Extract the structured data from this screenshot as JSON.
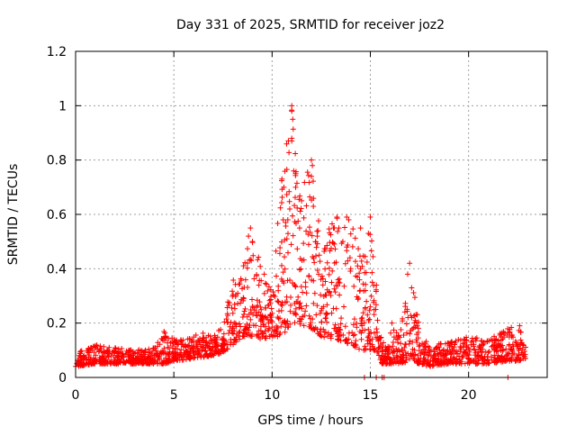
{
  "chart_data": {
    "type": "scatter",
    "title": "Day 331 of 2025, SRMTID for receiver joz2",
    "xlabel": "GPS time / hours",
    "ylabel": "SRMTID / TECUs",
    "xlim": [
      0,
      24
    ],
    "ylim": [
      0,
      1.2
    ],
    "x_ticks": [
      0,
      5,
      10,
      15,
      20
    ],
    "x_tick_labels": [
      "0",
      "5",
      "10",
      "15",
      "20"
    ],
    "y_ticks": [
      0,
      0.2,
      0.4,
      0.6,
      0.8,
      1,
      1.2
    ],
    "y_tick_labels": [
      "0",
      "0.2",
      "0.4",
      "0.6",
      "0.8",
      "1",
      "1.2"
    ],
    "grid": true,
    "marker": "+",
    "color": "#ff0000",
    "envelope": [
      {
        "x": 0.0,
        "base": 0.04,
        "top": 0.09
      },
      {
        "x": 1.0,
        "base": 0.05,
        "top": 0.12
      },
      {
        "x": 2.0,
        "base": 0.05,
        "top": 0.11
      },
      {
        "x": 3.0,
        "base": 0.05,
        "top": 0.1
      },
      {
        "x": 4.0,
        "base": 0.05,
        "top": 0.11
      },
      {
        "x": 4.5,
        "base": 0.05,
        "top": 0.17
      },
      {
        "x": 5.0,
        "base": 0.06,
        "top": 0.14
      },
      {
        "x": 6.0,
        "base": 0.07,
        "top": 0.16
      },
      {
        "x": 7.0,
        "base": 0.08,
        "top": 0.17
      },
      {
        "x": 7.5,
        "base": 0.09,
        "top": 0.18
      },
      {
        "x": 8.0,
        "base": 0.12,
        "top": 0.38
      },
      {
        "x": 8.5,
        "base": 0.15,
        "top": 0.4
      },
      {
        "x": 8.9,
        "base": 0.15,
        "top": 0.55
      },
      {
        "x": 9.5,
        "base": 0.14,
        "top": 0.4
      },
      {
        "x": 10.0,
        "base": 0.15,
        "top": 0.35
      },
      {
        "x": 10.5,
        "base": 0.15,
        "top": 0.74
      },
      {
        "x": 11.0,
        "base": 0.2,
        "top": 1.0
      },
      {
        "x": 11.3,
        "base": 0.2,
        "top": 0.75
      },
      {
        "x": 12.0,
        "base": 0.18,
        "top": 0.8
      },
      {
        "x": 12.5,
        "base": 0.15,
        "top": 0.5
      },
      {
        "x": 13.3,
        "base": 0.14,
        "top": 0.6
      },
      {
        "x": 14.0,
        "base": 0.12,
        "top": 0.6
      },
      {
        "x": 14.5,
        "base": 0.1,
        "top": 0.45
      },
      {
        "x": 15.0,
        "base": 0.1,
        "top": 0.6
      },
      {
        "x": 15.3,
        "base": 0.1,
        "top": 0.35
      },
      {
        "x": 15.6,
        "base": 0.05,
        "top": 0.12
      },
      {
        "x": 16.0,
        "base": 0.05,
        "top": 0.2
      },
      {
        "x": 16.5,
        "base": 0.05,
        "top": 0.15
      },
      {
        "x": 17.0,
        "base": 0.06,
        "top": 0.42
      },
      {
        "x": 17.5,
        "base": 0.05,
        "top": 0.2
      },
      {
        "x": 18.0,
        "base": 0.04,
        "top": 0.12
      },
      {
        "x": 19.0,
        "base": 0.05,
        "top": 0.13
      },
      {
        "x": 20.0,
        "base": 0.05,
        "top": 0.15
      },
      {
        "x": 21.0,
        "base": 0.05,
        "top": 0.14
      },
      {
        "x": 22.0,
        "base": 0.06,
        "top": 0.18
      },
      {
        "x": 22.5,
        "base": 0.06,
        "top": 0.2
      },
      {
        "x": 22.9,
        "base": 0.07,
        "top": 0.12
      }
    ],
    "peaks": [
      {
        "x": 8.9,
        "y": 0.55
      },
      {
        "x": 8.8,
        "y": 0.52
      },
      {
        "x": 9.0,
        "y": 0.5
      },
      {
        "x": 9.6,
        "y": 0.38
      },
      {
        "x": 10.5,
        "y": 0.73
      },
      {
        "x": 10.6,
        "y": 0.7
      },
      {
        "x": 10.8,
        "y": 0.58
      },
      {
        "x": 10.9,
        "y": 0.62
      },
      {
        "x": 11.0,
        "y": 1.0
      },
      {
        "x": 11.0,
        "y": 0.98
      },
      {
        "x": 11.05,
        "y": 0.95
      },
      {
        "x": 11.0,
        "y": 0.88
      },
      {
        "x": 11.0,
        "y": 0.87
      },
      {
        "x": 11.1,
        "y": 0.76
      },
      {
        "x": 11.2,
        "y": 0.75
      },
      {
        "x": 11.2,
        "y": 0.7
      },
      {
        "x": 11.4,
        "y": 0.55
      },
      {
        "x": 11.5,
        "y": 0.65
      },
      {
        "x": 12.0,
        "y": 0.8
      },
      {
        "x": 12.05,
        "y": 0.78
      },
      {
        "x": 12.0,
        "y": 0.74
      },
      {
        "x": 12.1,
        "y": 0.63
      },
      {
        "x": 12.3,
        "y": 0.52
      },
      {
        "x": 12.4,
        "y": 0.45
      },
      {
        "x": 13.3,
        "y": 0.59
      },
      {
        "x": 13.4,
        "y": 0.55
      },
      {
        "x": 13.6,
        "y": 0.5
      },
      {
        "x": 13.8,
        "y": 0.59
      },
      {
        "x": 13.9,
        "y": 0.58
      },
      {
        "x": 13.8,
        "y": 0.48
      },
      {
        "x": 14.0,
        "y": 0.4
      },
      {
        "x": 14.5,
        "y": 0.55
      },
      {
        "x": 14.5,
        "y": 0.4
      },
      {
        "x": 15.0,
        "y": 0.59
      },
      {
        "x": 14.9,
        "y": 0.53
      },
      {
        "x": 15.1,
        "y": 0.35
      },
      {
        "x": 17.0,
        "y": 0.42
      },
      {
        "x": 16.9,
        "y": 0.38
      },
      {
        "x": 17.1,
        "y": 0.33
      },
      {
        "x": 16.1,
        "y": 0.2
      },
      {
        "x": 22.6,
        "y": 0.19
      }
    ],
    "outliers": [
      {
        "x": 14.7,
        "y": 0.0
      },
      {
        "x": 15.3,
        "y": 0.0
      },
      {
        "x": 15.6,
        "y": 0.0
      },
      {
        "x": 15.7,
        "y": 0.0
      },
      {
        "x": 22.0,
        "y": 0.0
      }
    ],
    "points_per_hour": 85
  }
}
